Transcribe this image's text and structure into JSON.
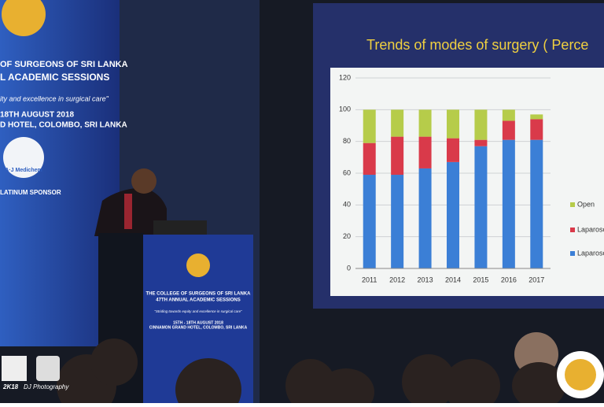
{
  "banner": {
    "lines": [
      "OF SURGEONS OF SRI LANKA",
      "L ACADEMIC SESSIONS",
      "ity and excellence in surgical care\"",
      "18TH AUGUST 2018",
      "D HOTEL, COLOMBO, SRI LANKA"
    ],
    "sponsor": "A·J Medichem",
    "sponsor_label": "LATINUM SPONSOR"
  },
  "podium": {
    "lines": [
      "THE COLLEGE OF SURGEONS OF SRI LANKA",
      "47TH ANNUAL ACADEMIC SESSIONS",
      "\"Striding towards equity and excellence in surgical care\"",
      "15TH - 18TH AUGUST 2018",
      "CINNAMON GRAND HOTEL, COLOMBO, SRI LANKA"
    ]
  },
  "watermark": {
    "year": "2K18",
    "studio": "DJ Photography"
  },
  "chart_data": {
    "type": "stacked-bar",
    "title": "Trends of modes of surgery ( Perce",
    "categories": [
      "2011",
      "2012",
      "2013",
      "2014",
      "2015",
      "2016",
      "2017"
    ],
    "series": [
      {
        "name": "Laparosc",
        "color": "#3b7fd6",
        "values": [
          59,
          59,
          63,
          67,
          77,
          81,
          81
        ]
      },
      {
        "name": "Laparosc open",
        "color": "#d93a4a",
        "values": [
          20,
          24,
          20,
          15,
          4,
          12,
          13
        ]
      },
      {
        "name": "Open",
        "color": "#b6cc4a",
        "values": [
          21,
          17,
          17,
          18,
          19,
          7,
          3
        ]
      }
    ],
    "ylim": [
      0,
      120
    ],
    "yticks": [
      0,
      20,
      40,
      60,
      80,
      100,
      120
    ],
    "grid": true
  }
}
